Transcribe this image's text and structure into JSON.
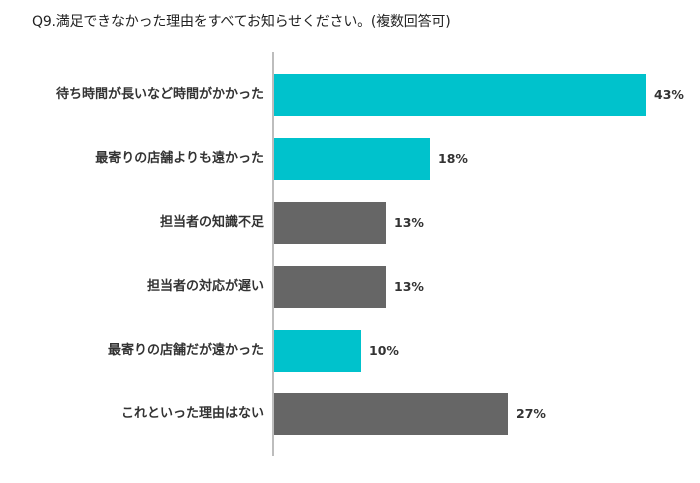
{
  "title": "Q9.満足できなかった理由をすべてお知らせください。(複数回答可)",
  "colors": {
    "highlight": "#00c2cc",
    "neutral": "#666666",
    "axis": "#bdbdbd"
  },
  "chart_data": {
    "type": "bar",
    "orientation": "horizontal",
    "title": "Q9.満足できなかった理由をすべてお知らせください。(複数回答可)",
    "xlabel": "",
    "ylabel": "",
    "categories": [
      "待ち時間が長いなど時間がかかった",
      "最寄りの店舗よりも遠かった",
      "担当者の知識不足",
      "担当者の対応が遅い",
      "最寄りの店舗だが遠かった",
      "これといった理由はない"
    ],
    "values": [
      43,
      18,
      13,
      13,
      10,
      27
    ],
    "labels": [
      "43%",
      "18%",
      "13%",
      "13%",
      "10%",
      "27%"
    ],
    "bar_colors": [
      "#00c2cc",
      "#00c2cc",
      "#666666",
      "#666666",
      "#00c2cc",
      "#666666"
    ],
    "unit": "%",
    "grid": false,
    "legend": null
  },
  "bars": [
    {
      "label": "待ち時間が長いなど時間がかかった",
      "value_label": "43%"
    },
    {
      "label": "最寄りの店舗よりも遠かった",
      "value_label": "18%"
    },
    {
      "label": "担当者の知識不足",
      "value_label": "13%"
    },
    {
      "label": "担当者の対応が遅い",
      "value_label": "13%"
    },
    {
      "label": "最寄りの店舗だが遠かった",
      "value_label": "10%"
    },
    {
      "label": "これといった理由はない",
      "value_label": "27%"
    }
  ]
}
